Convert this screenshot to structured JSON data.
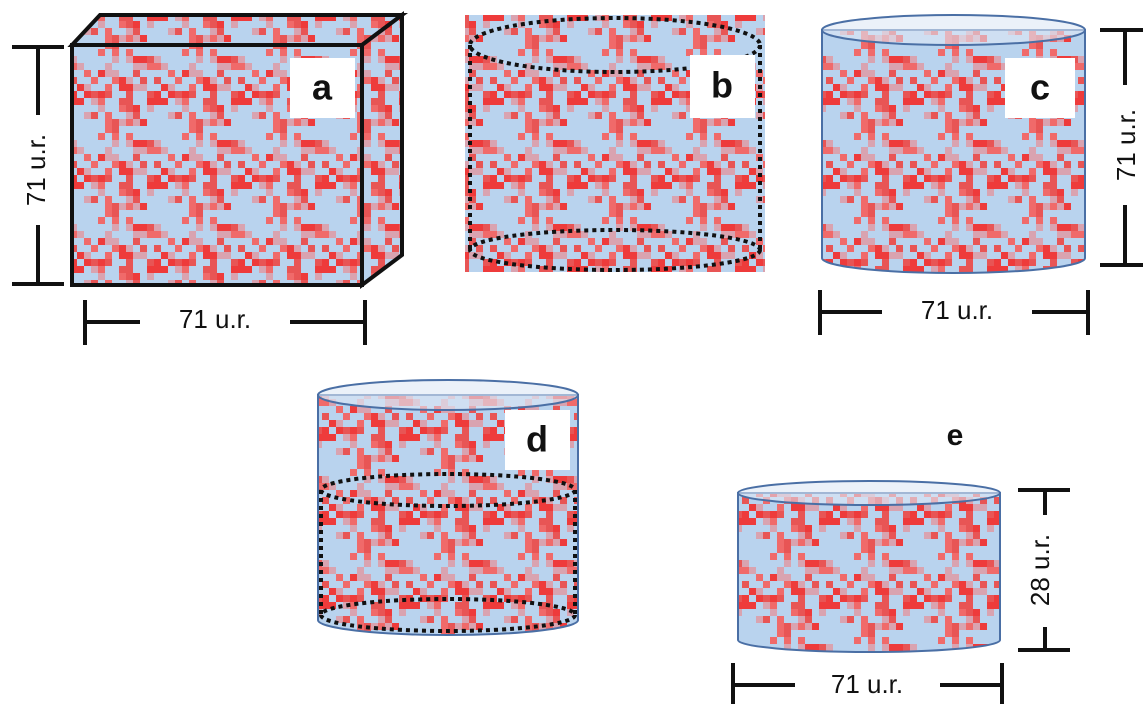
{
  "panels": [
    {
      "label": "a",
      "height_label": "71 u.r.",
      "width_label": "71 u.r."
    },
    {
      "label": "b"
    },
    {
      "label": "c",
      "height_label": "71 u.r.",
      "width_label": "71 u.r."
    },
    {
      "label": "d"
    },
    {
      "label": "e",
      "height_label": "28 u.r.",
      "width_label": "71 u.r."
    }
  ]
}
